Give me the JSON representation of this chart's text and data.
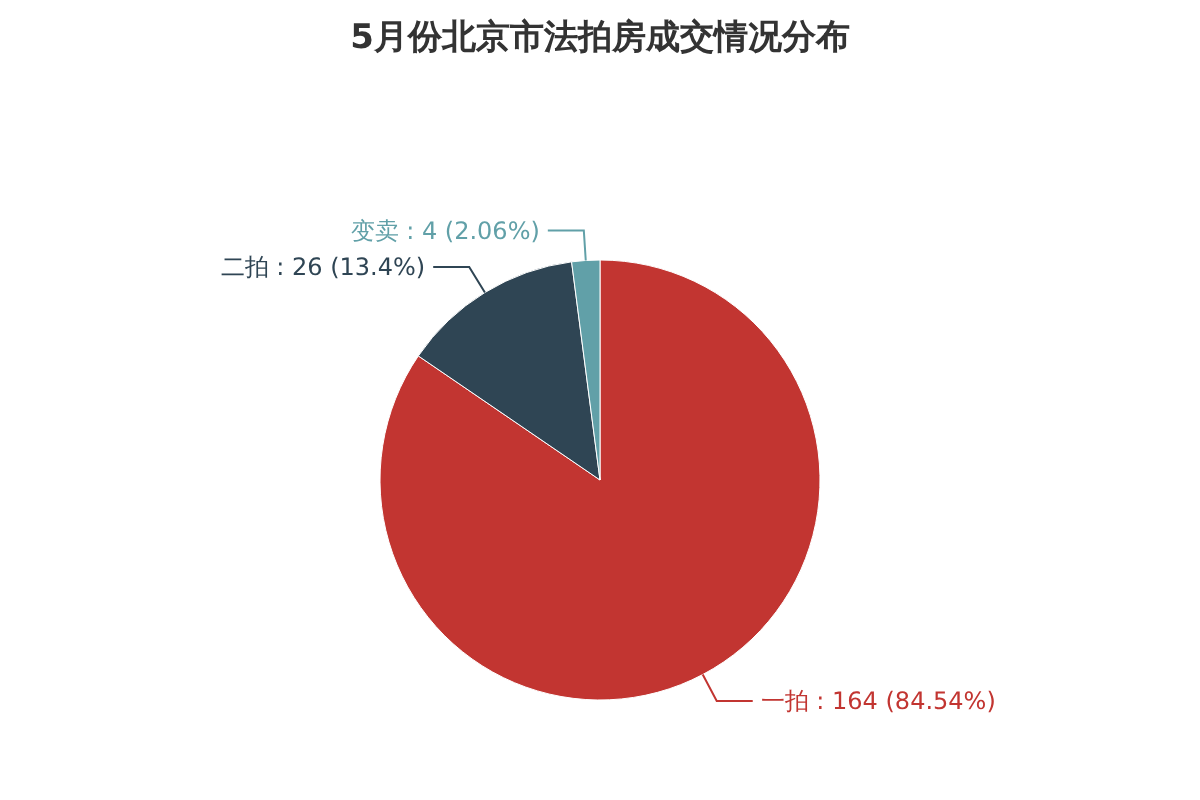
{
  "chart_data": {
    "type": "pie",
    "title": "5月份北京市法拍房成交情况分布",
    "categories": [
      "一拍",
      "二拍",
      "变卖"
    ],
    "values": [
      164,
      26,
      4
    ],
    "colors": [
      "#c23531",
      "#2f4554",
      "#61a0a8"
    ],
    "value_labels": [
      "164 (84.54%)",
      "26 (13.4%)",
      "4 (2.06%)"
    ]
  }
}
